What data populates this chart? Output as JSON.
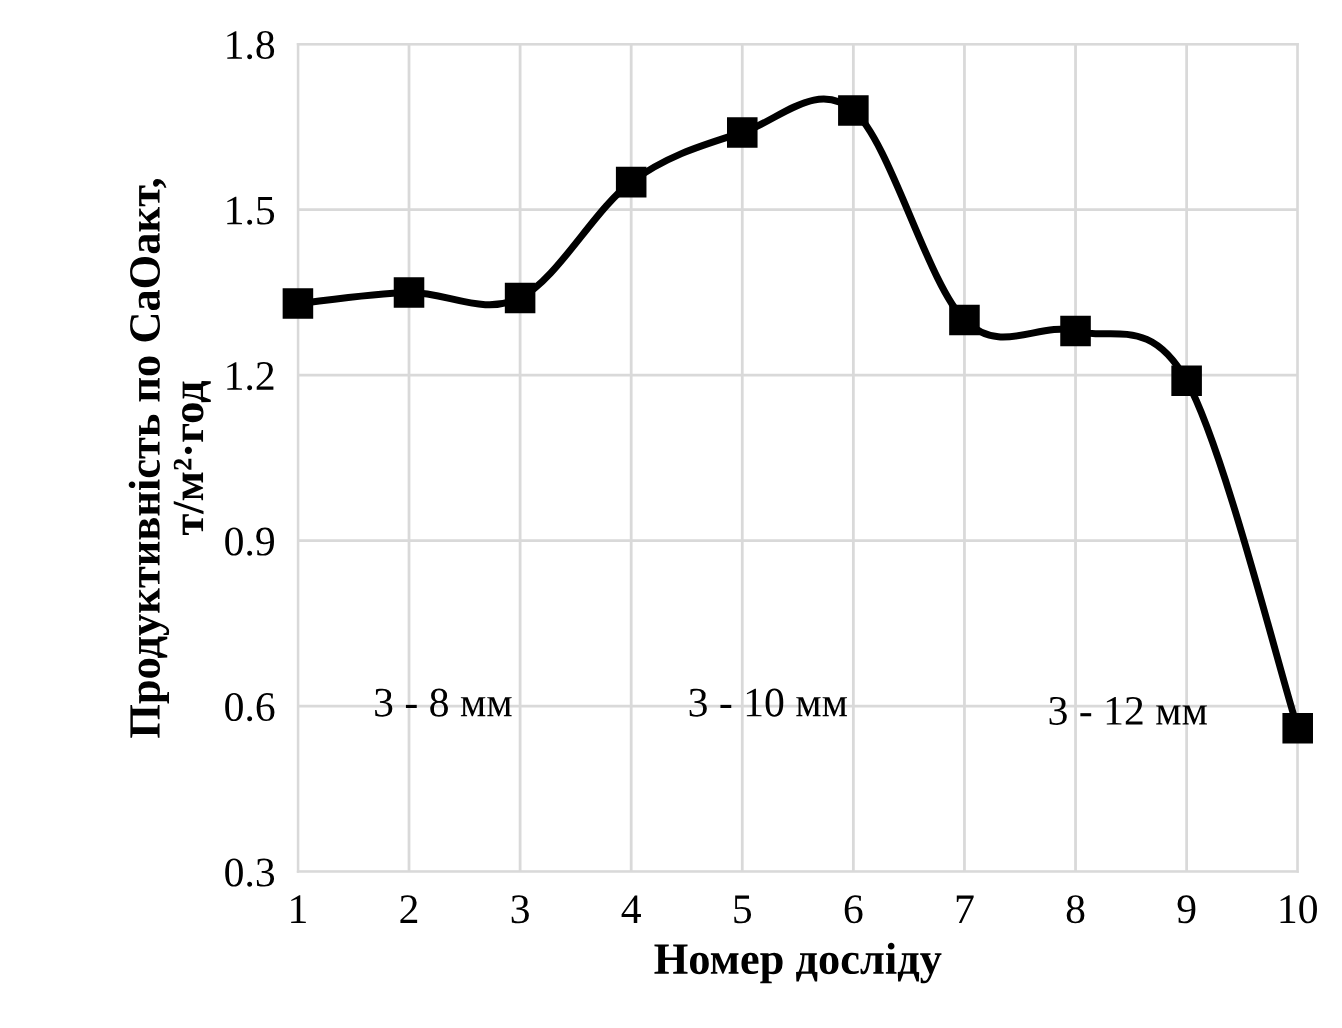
{
  "chart_data": {
    "type": "line",
    "xlabel": "Номер досліду",
    "ylabel": "Продуктивність по СаОакт,\nт/м²·год",
    "categories": [
      "1",
      "2",
      "3",
      "4",
      "5",
      "6",
      "7",
      "8",
      "9",
      "10"
    ],
    "series": [
      {
        "color": "#000000",
        "values": [
          1.33,
          1.35,
          1.34,
          1.55,
          1.64,
          1.68,
          1.3,
          1.28,
          1.19,
          0.56
        ]
      }
    ],
    "ylim": [
      0.3,
      1.8
    ],
    "yticks": [
      0.3,
      0.6,
      0.9,
      1.2,
      1.5,
      1.8
    ],
    "grid": true,
    "marker": "square",
    "line_style": "solid",
    "annotations": [
      "3 - 8 мм",
      "3 - 10 мм",
      "3 - 12 мм"
    ]
  }
}
